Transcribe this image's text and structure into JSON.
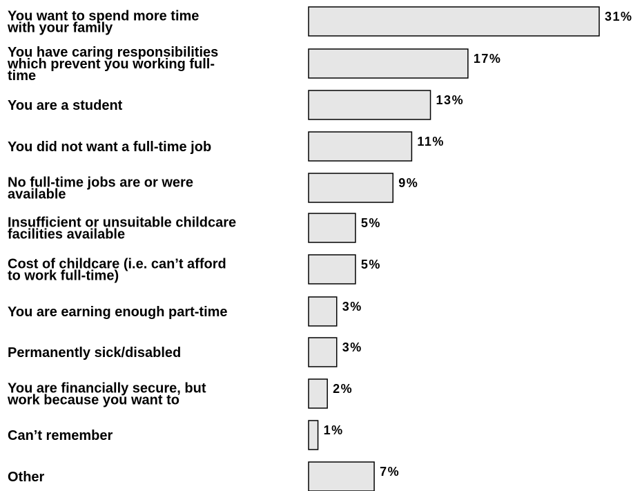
{
  "chart_data": {
    "type": "bar",
    "orientation": "horizontal",
    "categories": [
      [
        "You want to spend more time",
        "with your family"
      ],
      [
        "You have caring responsibilities",
        "which prevent you working full-",
        "time"
      ],
      [
        "You are a student"
      ],
      [
        "You did not want a full-time job"
      ],
      [
        "No full-time jobs are or were",
        "available"
      ],
      [
        "Insufficient or unsuitable childcare",
        "facilities available"
      ],
      [
        "Cost of childcare (i.e. can’t afford",
        "to work full-time)"
      ],
      [
        "You are earning enough part-time"
      ],
      [
        "Permanently sick/disabled"
      ],
      [
        "You are financially secure, but",
        "work because you want to"
      ],
      [
        "Can’t remember"
      ],
      [
        "Other"
      ]
    ],
    "values": [
      31,
      17,
      13,
      11,
      9,
      5,
      5,
      3,
      3,
      2,
      1,
      7
    ],
    "value_labels": [
      "31%",
      "17%",
      "13%",
      "11%",
      "9%",
      "5%",
      "5%",
      "3%",
      "3%",
      "2%",
      "1%",
      "7%"
    ],
    "unit": "%",
    "xlim": [
      0,
      31
    ],
    "grid": false,
    "legend": "none",
    "bar_color": "#e6e6e6",
    "edge_color": "#000000"
  }
}
